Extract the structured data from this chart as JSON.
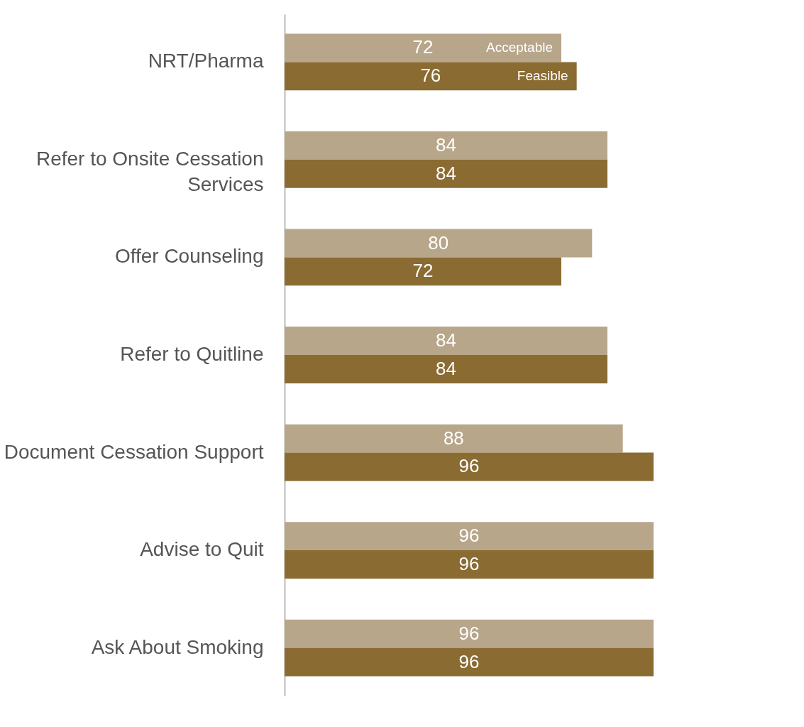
{
  "chart_data": {
    "type": "bar",
    "orientation": "horizontal",
    "data_labels": true,
    "categories": [
      "NRT/Pharma",
      "Refer to Onsite Cessation Services",
      "Offer Counseling",
      "Refer to Quitline",
      "Document Cessation Support",
      "Advise to Quit",
      "Ask About Smoking"
    ],
    "series": [
      {
        "name": "Acceptable",
        "color": "#b8a68a",
        "values": [
          72,
          84,
          80,
          84,
          88,
          96,
          96
        ]
      },
      {
        "name": "Feasible",
        "color": "#8a6b32",
        "values": [
          76,
          84,
          72,
          84,
          96,
          96,
          96
        ]
      }
    ]
  }
}
